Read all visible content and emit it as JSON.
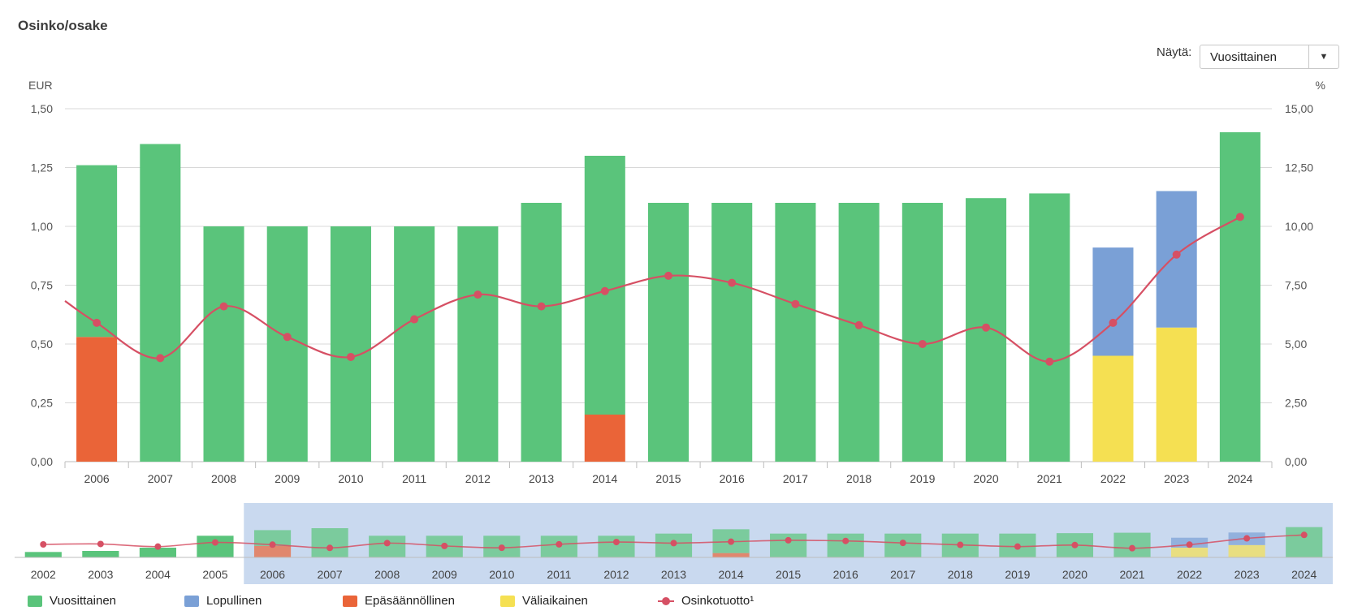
{
  "title": "Osinko/osake",
  "controls": {
    "view_label": "Näytä:",
    "view_value": "Vuosittainen"
  },
  "icons": {
    "dropdown": "chevron-down-icon",
    "legend_swatch": "square",
    "legend_line": "line-with-dot"
  },
  "colors": {
    "annual": "#5ac47b",
    "final": "#7aa0d6",
    "extra": "#ea6438",
    "interim": "#f5e052",
    "yield": "#d65064",
    "navigator_band": "#c9d9ef"
  },
  "legend": [
    {
      "label": "Vuosittainen",
      "color": "#5ac47b",
      "kind": "box"
    },
    {
      "label": "Lopullinen",
      "color": "#7aa0d6",
      "kind": "box"
    },
    {
      "label": "Epäsäännöllinen",
      "color": "#ea6438",
      "kind": "box"
    },
    {
      "label": "Väliaikainen",
      "color": "#f5e052",
      "kind": "box"
    },
    {
      "label": "Osinkotuotto¹",
      "color": "#d65064",
      "kind": "line"
    }
  ],
  "chart_data": {
    "type": "bar",
    "stacked": true,
    "left_axis": {
      "label": "EUR",
      "ylim": [
        0,
        1.5
      ],
      "ticks": [
        "0,00",
        "0,25",
        "0,50",
        "0,75",
        "1,00",
        "1,25",
        "1,50"
      ]
    },
    "right_axis": {
      "label": "%",
      "ylim": [
        0,
        15
      ],
      "ticks": [
        "0,00",
        "2,50",
        "5,00",
        "7,50",
        "10,00",
        "12,50",
        "15,00"
      ]
    },
    "grid": true,
    "categories": [
      "2006",
      "2007",
      "2008",
      "2009",
      "2010",
      "2011",
      "2012",
      "2013",
      "2014",
      "2015",
      "2016",
      "2017",
      "2018",
      "2019",
      "2020",
      "2021",
      "2022",
      "2023",
      "2024"
    ],
    "series": [
      {
        "name": "Epäsäännöllinen",
        "values": [
          0.53,
          0,
          0,
          0,
          0,
          0,
          0,
          0,
          0.2,
          0,
          0,
          0,
          0,
          0,
          0,
          0,
          0,
          0,
          0
        ]
      },
      {
        "name": "Väliaikainen",
        "values": [
          0,
          0,
          0,
          0,
          0,
          0,
          0,
          0,
          0,
          0,
          0,
          0,
          0,
          0,
          0,
          0,
          0.45,
          0.57,
          0
        ]
      },
      {
        "name": "Vuosittainen",
        "values": [
          0.73,
          1.35,
          1.0,
          1.0,
          1.0,
          1.0,
          1.0,
          1.1,
          1.1,
          1.1,
          1.1,
          1.1,
          1.1,
          1.1,
          1.12,
          1.14,
          0,
          0,
          1.4
        ]
      },
      {
        "name": "Lopullinen",
        "values": [
          0,
          0,
          0,
          0,
          0,
          0,
          0,
          0,
          0,
          0,
          0,
          0,
          0,
          0,
          0,
          0,
          0.46,
          0.58,
          0
        ]
      }
    ],
    "yield_series": {
      "name": "Osinkotuotto¹",
      "axis": "right",
      "values": [
        5.9,
        4.4,
        6.6,
        5.3,
        4.45,
        6.05,
        7.1,
        6.6,
        7.25,
        7.9,
        7.6,
        6.7,
        5.8,
        5.0,
        5.7,
        4.25,
        5.9,
        8.8,
        10.4
      ]
    },
    "navigator": {
      "categories": [
        "2002",
        "2003",
        "2004",
        "2005",
        "2006",
        "2007",
        "2008",
        "2009",
        "2010",
        "2011",
        "2012",
        "2013",
        "2014",
        "2015",
        "2016",
        "2017",
        "2018",
        "2019",
        "2020",
        "2021",
        "2022",
        "2023",
        "2024"
      ],
      "annual": [
        0.25,
        0.3,
        0.45,
        1.0,
        0.73,
        1.35,
        1.0,
        1.0,
        1.0,
        1.0,
        1.0,
        1.1,
        1.1,
        1.1,
        1.1,
        1.1,
        1.1,
        1.1,
        1.12,
        1.14,
        0,
        0,
        1.4
      ],
      "extra": [
        0,
        0,
        0,
        0,
        0.53,
        0,
        0,
        0,
        0,
        0,
        0,
        0,
        0.2,
        0,
        0,
        0,
        0,
        0,
        0,
        0,
        0,
        0,
        0
      ],
      "interim": [
        0,
        0,
        0,
        0,
        0,
        0,
        0,
        0,
        0,
        0,
        0,
        0,
        0,
        0,
        0,
        0,
        0,
        0,
        0,
        0,
        0.45,
        0.57,
        0
      ],
      "final": [
        0,
        0,
        0,
        0,
        0,
        0,
        0,
        0,
        0,
        0,
        0,
        0,
        0,
        0,
        0,
        0,
        0,
        0,
        0,
        0,
        0.46,
        0.58,
        0
      ],
      "yield": [
        6.0,
        6.2,
        5.0,
        6.9,
        5.9,
        4.4,
        6.6,
        5.3,
        4.45,
        6.05,
        7.1,
        6.6,
        7.25,
        7.9,
        7.6,
        6.7,
        5.8,
        5.0,
        5.7,
        4.25,
        5.9,
        8.8,
        10.4
      ],
      "selected_range": [
        "2006",
        "2024"
      ]
    }
  }
}
